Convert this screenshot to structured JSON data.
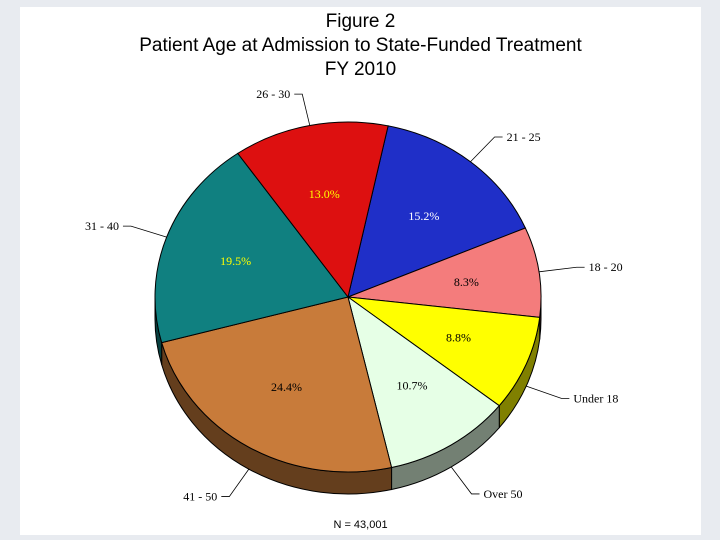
{
  "chart_data": {
    "type": "pie",
    "title_lines": [
      "Figure 2",
      "Patient Age at Admission to State-Funded Treatment",
      "FY 2010"
    ],
    "slices": [
      {
        "label": "21 - 25",
        "value": 15.2,
        "pct_text": "15.2%",
        "color": "#1f2fc8",
        "label_color": "#ffffff"
      },
      {
        "label": "18 - 20",
        "value": 8.3,
        "pct_text": "8.3%",
        "color": "#f47c7c",
        "label_color": "#000000"
      },
      {
        "label": "Under 18",
        "value": 8.8,
        "pct_text": "8.8%",
        "color": "#ffff00",
        "label_color": "#000000"
      },
      {
        "label": "Over 50",
        "value": 10.7,
        "pct_text": "10.7%",
        "color": "#e6ffe6",
        "label_color": "#000000"
      },
      {
        "label": "41 - 50",
        "value": 24.4,
        "pct_text": "24.4%",
        "color": "#c87b3a",
        "label_color": "#000000"
      },
      {
        "label": "31 - 40",
        "value": 19.5,
        "pct_text": "19.5%",
        "color": "#108080",
        "label_color": "#ffff00"
      },
      {
        "label": "26 - 30",
        "value": 13.0,
        "pct_text": "13.0%",
        "color": "#dd1010",
        "label_color": "#ffff00"
      }
    ],
    "note": "N = 43,001"
  }
}
